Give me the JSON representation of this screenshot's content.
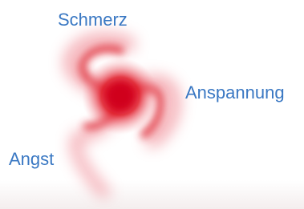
{
  "nodes": [
    {
      "label": "Schmerz"
    },
    {
      "label": "Anspannung"
    },
    {
      "label": "Angst"
    }
  ]
}
